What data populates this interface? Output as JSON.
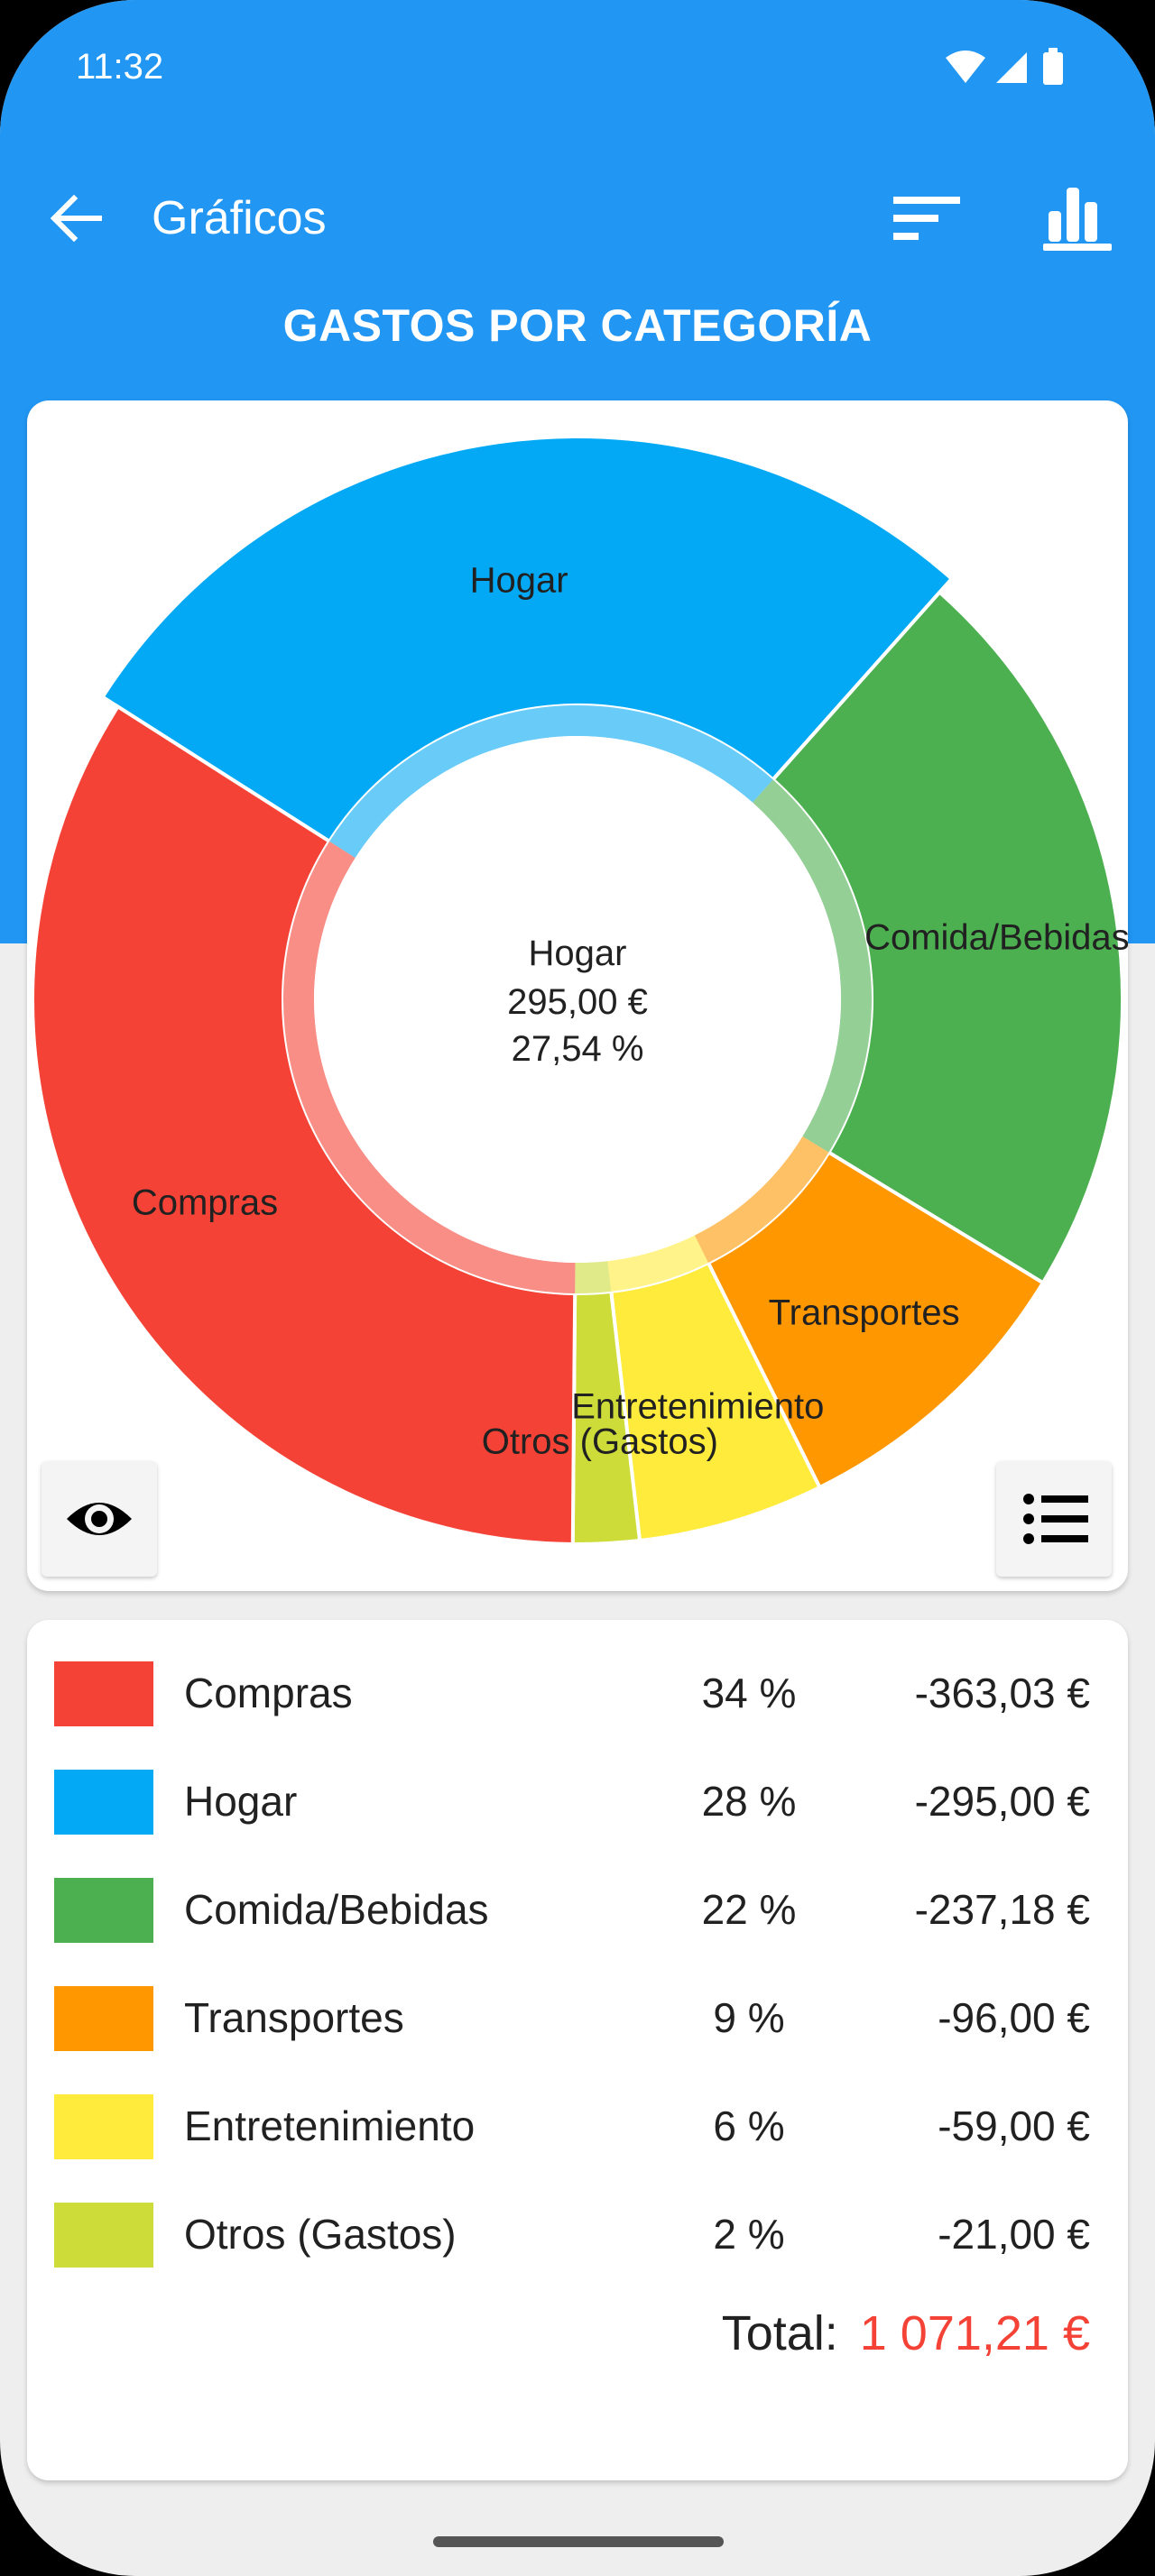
{
  "status_bar": {
    "time": "11:32"
  },
  "app_bar": {
    "title": "Gráficos",
    "icons": [
      "back-arrow-icon",
      "sort-icon",
      "bar-chart-icon"
    ]
  },
  "heading": "GASTOS POR CATEGORÍA",
  "colors": {
    "primary": "#2196f3",
    "Compras": "#f44336",
    "Hogar": "#03a9f4",
    "Comida/Bebidas": "#4caf50",
    "Transportes": "#ff9800",
    "Entretenimiento": "#ffeb3b",
    "Otros (Gastos)": "#cddc39",
    "total": "#f44336"
  },
  "chart_center": {
    "label": "Hogar",
    "amount": "295,00 €",
    "percent": "27,54 %"
  },
  "chart_buttons": [
    "eye-icon",
    "list-icon"
  ],
  "chart_data": {
    "type": "pie",
    "variant": "donut",
    "selected_slice": "Hogar",
    "slices": [
      {
        "label": "Hogar",
        "value": 295.0,
        "color": "#03a9f4"
      },
      {
        "label": "Comida/Bebidas",
        "value": 237.18,
        "color": "#4caf50"
      },
      {
        "label": "Transportes",
        "value": 96.0,
        "color": "#ff9800"
      },
      {
        "label": "Entretenimiento",
        "value": 59.0,
        "color": "#ffeb3b"
      },
      {
        "label": "Otros (Gastos)",
        "value": 21.0,
        "color": "#cddc39"
      },
      {
        "label": "Compras",
        "value": 363.03,
        "color": "#f44336"
      }
    ]
  },
  "legend": [
    {
      "name": "Compras",
      "percent": "34 %",
      "amount": "-363,03 €",
      "color": "#f44336"
    },
    {
      "name": "Hogar",
      "percent": "28 %",
      "amount": "-295,00 €",
      "color": "#03a9f4"
    },
    {
      "name": "Comida/Bebidas",
      "percent": "22 %",
      "amount": "-237,18 €",
      "color": "#4caf50"
    },
    {
      "name": "Transportes",
      "percent": "9 %",
      "amount": "-96,00 €",
      "color": "#ff9800"
    },
    {
      "name": "Entretenimiento",
      "percent": "6 %",
      "amount": "-59,00 €",
      "color": "#ffeb3b"
    },
    {
      "name": "Otros (Gastos)",
      "percent": "2 %",
      "amount": "-21,00 €",
      "color": "#cddc39"
    }
  ],
  "total": {
    "label": "Total:",
    "value": "1 071,21 €"
  }
}
